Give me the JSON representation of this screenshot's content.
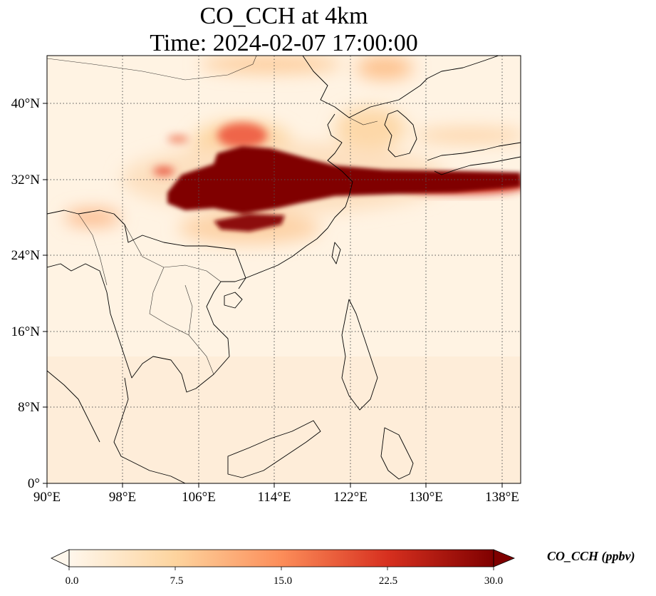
{
  "figure": {
    "title_line1": "CO_CCH at 4km",
    "title_line2": "Time: 2024-02-07 17:00:00"
  },
  "map": {
    "lon_range": [
      90,
      140
    ],
    "lat_range": [
      0,
      45
    ],
    "lon_ticks": [
      "90°E",
      "98°E",
      "106°E",
      "114°E",
      "122°E",
      "130°E",
      "138°E"
    ],
    "lat_ticks": [
      "0°",
      "8°N",
      "16°N",
      "24°N",
      "32°N",
      "40°N"
    ],
    "gridlines": "dotted",
    "coastlines": true,
    "borders": true
  },
  "colorbar": {
    "label": "CO_CCH (ppbv)",
    "colormap": "OrRd",
    "range": [
      0.0,
      30.0
    ],
    "extend": "both",
    "tick_labels": [
      "0.0",
      "7.5",
      "15.0",
      "22.5",
      "30.0"
    ],
    "colors": [
      "#fff7ec",
      "#fdd49e",
      "#fc8d59",
      "#d7301f",
      "#7f0000"
    ]
  },
  "field_features": [
    {
      "name": "main plume",
      "value_level": "≥30",
      "location": "eastern China ~28–35°N, extending east to 140°E"
    },
    {
      "name": "northern plume",
      "value_level": "10–20",
      "location": "north China / Korea ~36–45°N"
    },
    {
      "name": "background",
      "value_level": "0–5",
      "location": "southern domain"
    }
  ]
}
